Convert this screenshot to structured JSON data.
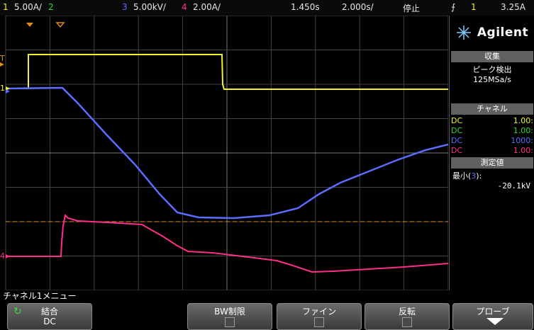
{
  "status": {
    "ch1_num": "1",
    "ch1_scale": "5.00A/",
    "ch2_num": "2",
    "ch3_num": "3",
    "ch3_scale": "5.00kV/",
    "ch4_num": "4",
    "ch4_scale": "2.00A/",
    "time_delay": "1.450s",
    "time_scale": "2.000s/",
    "run_state": "停止",
    "trig_source": "1",
    "trig_level": "3.25A"
  },
  "panel": {
    "brand": "Agilent",
    "acq_header": "収集",
    "acq_mode": "ピーク検出",
    "sample_rate": "125MSa/s",
    "channel_header": "チャネル",
    "channels": [
      {
        "coupling": "DC",
        "value": "1.00:",
        "color": "#f2f22a"
      },
      {
        "coupling": "DC",
        "value": "1.00:",
        "color": "#2fd82f"
      },
      {
        "coupling": "DC",
        "value": "1000:",
        "color": "#5c6cff"
      },
      {
        "coupling": "DC",
        "value": "1.00:",
        "color": "#ff2e8a"
      }
    ],
    "meas_header": "測定値",
    "meas_label_prefix": "最小(",
    "meas_label_ch": "3",
    "meas_label_suffix": "):",
    "meas_value": "-20.1kV"
  },
  "markers": {
    "ch1": "1",
    "ch4": "4",
    "trigger": "T"
  },
  "menu": {
    "title": "チャネル1メニュー",
    "keys": [
      {
        "label": "結合",
        "sub": "DC"
      },
      {
        "label": "BW制限"
      },
      {
        "label": "ファイン"
      },
      {
        "label": "反転"
      },
      {
        "label": "プローブ"
      }
    ]
  },
  "colors": {
    "ch1": "#f2f22a",
    "ch2": "#2fd82f",
    "ch3": "#5c6cff",
    "ch4": "#ff2e8a",
    "grid": "#5a5a5a",
    "trigger_level": "#e08a1e"
  }
}
